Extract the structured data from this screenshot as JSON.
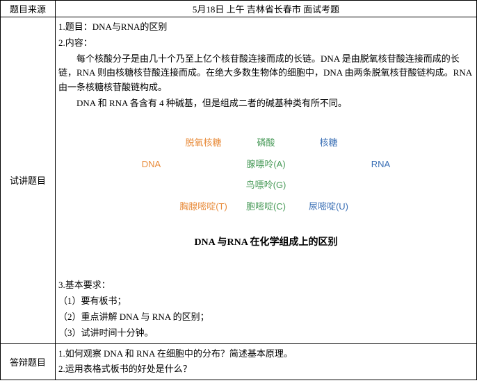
{
  "header": {
    "left": "题目来源",
    "right": "5月18日 上午 吉林省长春市 面试考题"
  },
  "lecture": {
    "rowLabel": "试讲题目",
    "line_title": "1.题目：DNA与RNA的区别",
    "line_content_label": "2.内容：",
    "para1": "每个核酸分子是由几十个乃至上亿个核苷酸连接而成的长链。DNA 是由脱氧核苷酸连接而成的长链，RNA 则由核糖核苷酸连接而成。在绝大多数生物体的细胞中，DNA 由两条脱氧核苷酸链构成。RNA 由一条核糖核苷酸链构成。",
    "para2": "DNA 和 RNA 各含有 4 种碱基，但是组成二者的碱基种类有所不同。",
    "diagram": {
      "colors": {
        "left": "#e88b3a",
        "mid": "#4a9b5a",
        "right": "#3a6fb5"
      },
      "r1": {
        "l": "脱氧核糖",
        "m": "磷酸",
        "r": "核糖"
      },
      "r2": {
        "l": "DNA",
        "m": "腺嘌呤(A)",
        "r": "RNA"
      },
      "r3": {
        "m": "鸟嘌呤(G)"
      },
      "r4": {
        "l": "胸腺嘧啶(T)",
        "m": "胞嘧啶(C)",
        "r": "尿嘧啶(U)"
      },
      "caption": "DNA 与RNA 在化学组成上的区别"
    },
    "req_label": "3.基本要求：",
    "req1": "（1）要有板书；",
    "req2": "（2）重点讲解 DNA 与 RNA 的区别；",
    "req3": "（3）试讲时间十分钟。"
  },
  "defense": {
    "rowLabel": "答辩题目",
    "q1": "1.如何观察 DNA 和 RNA 在细胞中的分布？简述基本原理。",
    "q2": "2.运用表格式板书的好处是什么？"
  }
}
